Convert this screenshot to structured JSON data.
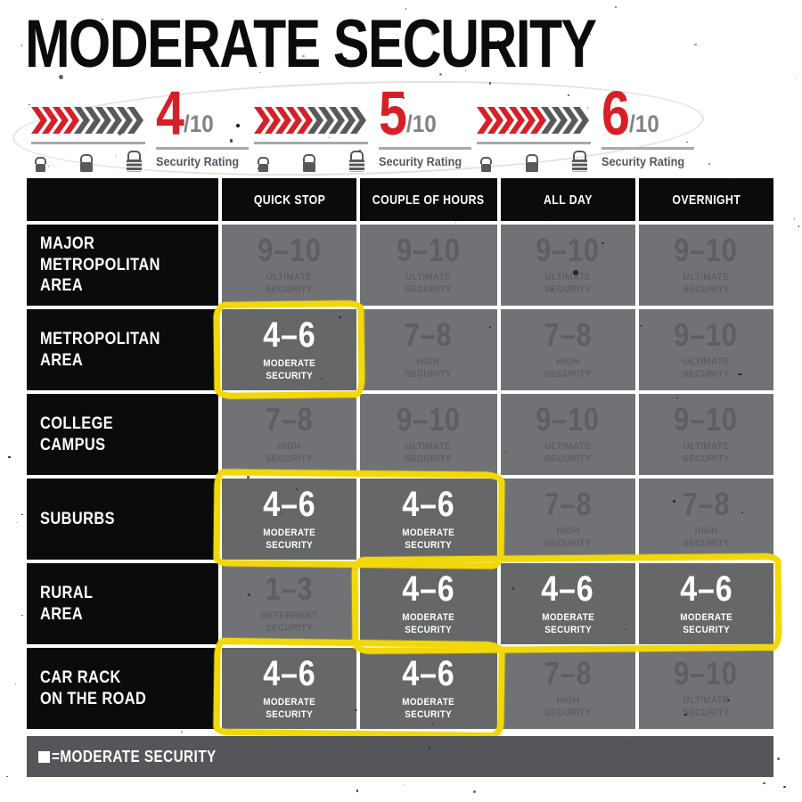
{
  "title": "MODERATE SECURITY",
  "ratings": [
    {
      "score": "4",
      "out_of": "/10",
      "caption": "Security Rating",
      "filled": 4,
      "total": 10
    },
    {
      "score": "5",
      "out_of": "/10",
      "caption": "Security Rating",
      "filled": 5,
      "total": 10
    },
    {
      "score": "6",
      "out_of": "/10",
      "caption": "Security Rating",
      "filled": 6,
      "total": 10
    }
  ],
  "table": {
    "column_headers": [
      "QUICK STOP",
      "COUPLE OF HOURS",
      "ALL DAY",
      "OVERNIGHT"
    ],
    "rows": [
      {
        "label": "MAJOR\nMETROPOLITAN\nAREA",
        "cells": [
          {
            "range": "9–10",
            "level": "ULTIMATE\nSECURITY",
            "active": false
          },
          {
            "range": "9–10",
            "level": "ULTIMATE\nSECURITY",
            "active": false
          },
          {
            "range": "9–10",
            "level": "ULTIMATE\nSECURITY",
            "active": false
          },
          {
            "range": "9–10",
            "level": "ULTIMATE\nSECURITY",
            "active": false
          }
        ]
      },
      {
        "label": "METROPOLITAN\nAREA",
        "cells": [
          {
            "range": "4–6",
            "level": "MODERATE\nSECURITY",
            "active": true
          },
          {
            "range": "7–8",
            "level": "HIGH\nSECURITY",
            "active": false
          },
          {
            "range": "7–8",
            "level": "HIGH\nSECURITY",
            "active": false
          },
          {
            "range": "9–10",
            "level": "ULTIMATE\nSECURITY",
            "active": false
          }
        ]
      },
      {
        "label": "COLLEGE\nCAMPUS",
        "cells": [
          {
            "range": "7–8",
            "level": "HIGH\nSECURITY",
            "active": false
          },
          {
            "range": "9–10",
            "level": "ULTIMATE\nSECURITY",
            "active": false
          },
          {
            "range": "9–10",
            "level": "ULTIMATE\nSECURITY",
            "active": false
          },
          {
            "range": "9–10",
            "level": "ULTIMATE\nSECURITY",
            "active": false
          }
        ]
      },
      {
        "label": "SUBURBS",
        "cells": [
          {
            "range": "4–6",
            "level": "MODERATE\nSECURITY",
            "active": true
          },
          {
            "range": "4–6",
            "level": "MODERATE\nSECURITY",
            "active": true
          },
          {
            "range": "7–8",
            "level": "HIGH\nSECURITY",
            "active": false
          },
          {
            "range": "7–8",
            "level": "HIGH\nSECURITY",
            "active": false
          }
        ]
      },
      {
        "label": "RURAL\nAREA",
        "cells": [
          {
            "range": "1–3",
            "level": "DETERRENT\nSECURITY",
            "active": false
          },
          {
            "range": "4–6",
            "level": "MODERATE\nSECURITY",
            "active": true
          },
          {
            "range": "4–6",
            "level": "MODERATE\nSECURITY",
            "active": true
          },
          {
            "range": "4–6",
            "level": "MODERATE\nSECURITY",
            "active": true
          }
        ]
      },
      {
        "label": "CAR RACK\nON THE ROAD",
        "cells": [
          {
            "range": "4–6",
            "level": "MODERATE\nSECURITY",
            "active": true
          },
          {
            "range": "4–6",
            "level": "MODERATE\nSECURITY",
            "active": true
          },
          {
            "range": "7–8",
            "level": "HIGH\nSECURITY",
            "active": false
          },
          {
            "range": "9–10",
            "level": "ULTIMATE\nSECURITY",
            "active": false
          }
        ]
      }
    ]
  },
  "legend": {
    "text": "=MODERATE SECURITY"
  },
  "colors": {
    "red": "#d71f27",
    "chevron_gray": "#58595b",
    "highlight_yellow": "#f2d70a",
    "cell_gray": "#707275",
    "cell_gray_active": "#656769",
    "dim_text": "#5d5f62",
    "black": "#0b0b0b",
    "legend_bg": "#55565a"
  },
  "chart_data": {
    "type": "table",
    "title": "MODERATE SECURITY",
    "security_rating_scores": [
      4,
      5,
      6
    ],
    "security_rating_scale_max": 10,
    "columns": [
      "QUICK STOP",
      "COUPLE OF HOURS",
      "ALL DAY",
      "OVERNIGHT"
    ],
    "row_labels": [
      "MAJOR METROPOLITAN AREA",
      "METROPOLITAN AREA",
      "COLLEGE CAMPUS",
      "SUBURBS",
      "RURAL AREA",
      "CAR RACK ON THE ROAD"
    ],
    "values": [
      [
        "9–10 ULTIMATE SECURITY",
        "9–10 ULTIMATE SECURITY",
        "9–10 ULTIMATE SECURITY",
        "9–10 ULTIMATE SECURITY"
      ],
      [
        "4–6 MODERATE SECURITY",
        "7–8 HIGH SECURITY",
        "7–8 HIGH SECURITY",
        "9–10 ULTIMATE SECURITY"
      ],
      [
        "7–8 HIGH SECURITY",
        "9–10 ULTIMATE SECURITY",
        "9–10 ULTIMATE SECURITY",
        "9–10 ULTIMATE SECURITY"
      ],
      [
        "4–6 MODERATE SECURITY",
        "4–6 MODERATE SECURITY",
        "7–8 HIGH SECURITY",
        "7–8 HIGH SECURITY"
      ],
      [
        "1–3 DETERRENT SECURITY",
        "4–6 MODERATE SECURITY",
        "4–6 MODERATE SECURITY",
        "4–6 MODERATE SECURITY"
      ],
      [
        "4–6 MODERATE SECURITY",
        "4–6 MODERATE SECURITY",
        "7–8 HIGH SECURITY",
        "9–10 ULTIMATE SECURITY"
      ]
    ],
    "highlighted_cells_note": "All 4–6 MODERATE SECURITY cells are circled in yellow marker",
    "legend": "■ = MODERATE SECURITY"
  }
}
